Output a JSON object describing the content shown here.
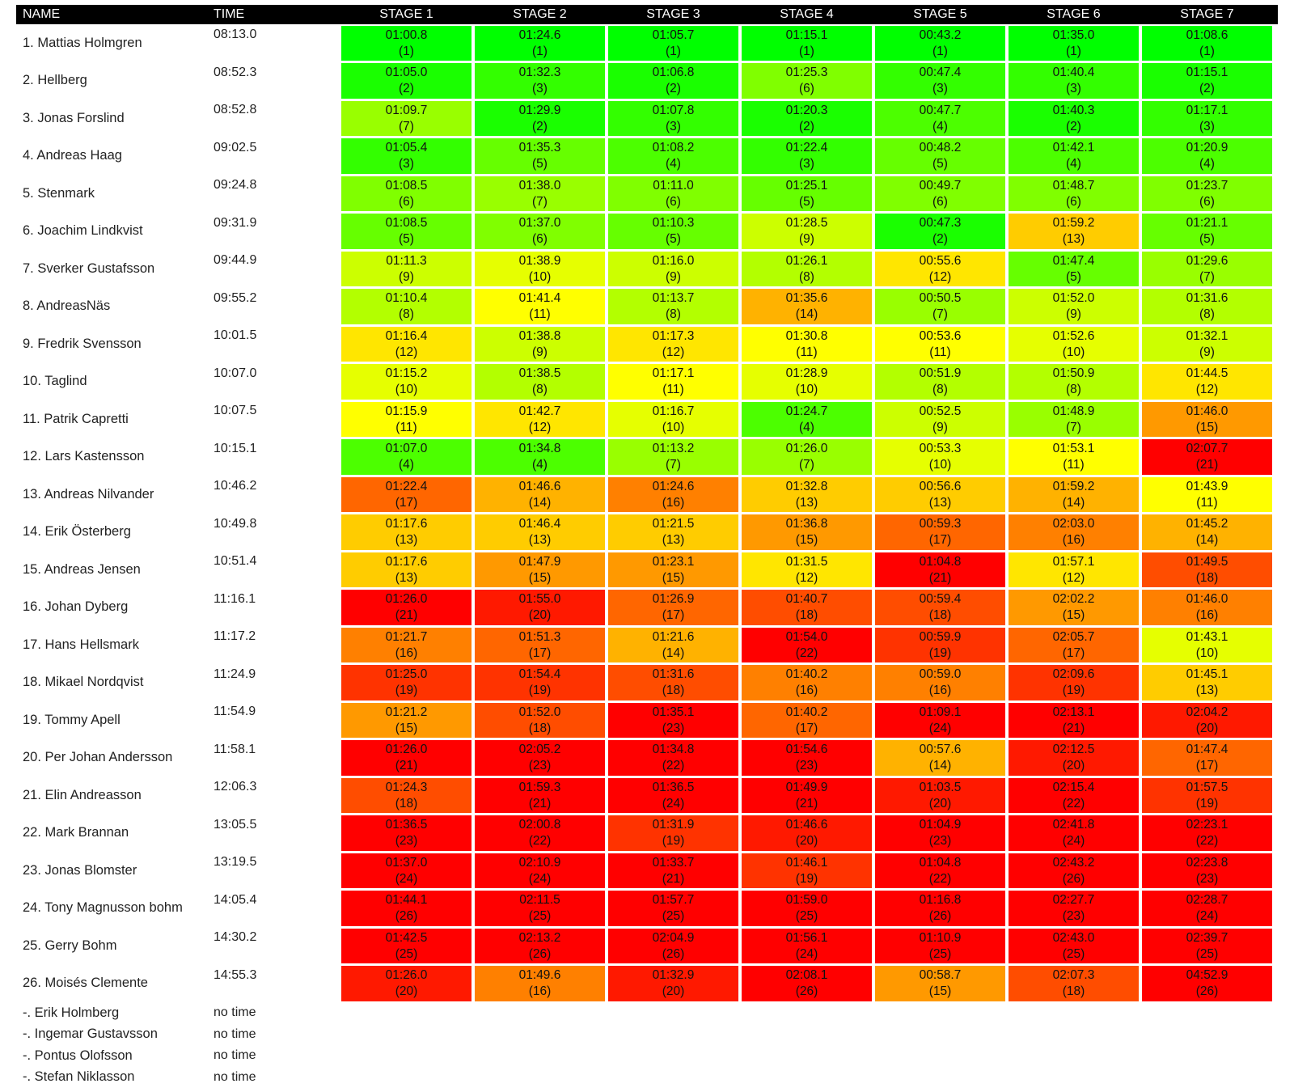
{
  "headers": {
    "name": "NAME",
    "time": "TIME",
    "stages": [
      "STAGE 1",
      "STAGE 2",
      "STAGE 3",
      "STAGE 4",
      "STAGE 5",
      "STAGE 6",
      "STAGE 7"
    ]
  },
  "rows": [
    {
      "name": "1. Mattias Holmgren",
      "time": "08:13.0",
      "stages": [
        {
          "t": "01:00.8",
          "r": 1
        },
        {
          "t": "01:24.6",
          "r": 1
        },
        {
          "t": "01:05.7",
          "r": 1
        },
        {
          "t": "01:15.1",
          "r": 1
        },
        {
          "t": "00:43.2",
          "r": 1
        },
        {
          "t": "01:35.0",
          "r": 1
        },
        {
          "t": "01:08.6",
          "r": 1
        }
      ]
    },
    {
      "name": "2. Hellberg",
      "time": "08:52.3",
      "stages": [
        {
          "t": "01:05.0",
          "r": 2
        },
        {
          "t": "01:32.3",
          "r": 3
        },
        {
          "t": "01:06.8",
          "r": 2
        },
        {
          "t": "01:25.3",
          "r": 6
        },
        {
          "t": "00:47.4",
          "r": 3
        },
        {
          "t": "01:40.4",
          "r": 3
        },
        {
          "t": "01:15.1",
          "r": 2
        }
      ]
    },
    {
      "name": "3. Jonas Forslind",
      "time": "08:52.8",
      "stages": [
        {
          "t": "01:09.7",
          "r": 7
        },
        {
          "t": "01:29.9",
          "r": 2
        },
        {
          "t": "01:07.8",
          "r": 3
        },
        {
          "t": "01:20.3",
          "r": 2
        },
        {
          "t": "00:47.7",
          "r": 4
        },
        {
          "t": "01:40.3",
          "r": 2
        },
        {
          "t": "01:17.1",
          "r": 3
        }
      ]
    },
    {
      "name": "4. Andreas Haag",
      "time": "09:02.5",
      "stages": [
        {
          "t": "01:05.4",
          "r": 3
        },
        {
          "t": "01:35.3",
          "r": 5
        },
        {
          "t": "01:08.2",
          "r": 4
        },
        {
          "t": "01:22.4",
          "r": 3
        },
        {
          "t": "00:48.2",
          "r": 5
        },
        {
          "t": "01:42.1",
          "r": 4
        },
        {
          "t": "01:20.9",
          "r": 4
        }
      ]
    },
    {
      "name": "5. Stenmark",
      "time": "09:24.8",
      "stages": [
        {
          "t": "01:08.5",
          "r": 6
        },
        {
          "t": "01:38.0",
          "r": 7
        },
        {
          "t": "01:11.0",
          "r": 6
        },
        {
          "t": "01:25.1",
          "r": 5
        },
        {
          "t": "00:49.7",
          "r": 6
        },
        {
          "t": "01:48.7",
          "r": 6
        },
        {
          "t": "01:23.7",
          "r": 6
        }
      ]
    },
    {
      "name": "6. Joachim Lindkvist",
      "time": "09:31.9",
      "stages": [
        {
          "t": "01:08.5",
          "r": 5
        },
        {
          "t": "01:37.0",
          "r": 6
        },
        {
          "t": "01:10.3",
          "r": 5
        },
        {
          "t": "01:28.5",
          "r": 9
        },
        {
          "t": "00:47.3",
          "r": 2
        },
        {
          "t": "01:59.2",
          "r": 13
        },
        {
          "t": "01:21.1",
          "r": 5
        }
      ]
    },
    {
      "name": "7. Sverker Gustafsson",
      "time": "09:44.9",
      "stages": [
        {
          "t": "01:11.3",
          "r": 9
        },
        {
          "t": "01:38.9",
          "r": 10
        },
        {
          "t": "01:16.0",
          "r": 9
        },
        {
          "t": "01:26.1",
          "r": 8
        },
        {
          "t": "00:55.6",
          "r": 12
        },
        {
          "t": "01:47.4",
          "r": 5
        },
        {
          "t": "01:29.6",
          "r": 7
        }
      ]
    },
    {
      "name": "8. AndreasNäs",
      "time": "09:55.2",
      "stages": [
        {
          "t": "01:10.4",
          "r": 8
        },
        {
          "t": "01:41.4",
          "r": 11
        },
        {
          "t": "01:13.7",
          "r": 8
        },
        {
          "t": "01:35.6",
          "r": 14
        },
        {
          "t": "00:50.5",
          "r": 7
        },
        {
          "t": "01:52.0",
          "r": 9
        },
        {
          "t": "01:31.6",
          "r": 8
        }
      ]
    },
    {
      "name": "9. Fredrik Svensson",
      "time": "10:01.5",
      "stages": [
        {
          "t": "01:16.4",
          "r": 12
        },
        {
          "t": "01:38.8",
          "r": 9
        },
        {
          "t": "01:17.3",
          "r": 12
        },
        {
          "t": "01:30.8",
          "r": 11
        },
        {
          "t": "00:53.6",
          "r": 11
        },
        {
          "t": "01:52.6",
          "r": 10
        },
        {
          "t": "01:32.1",
          "r": 9
        }
      ]
    },
    {
      "name": "10. Taglind",
      "time": "10:07.0",
      "stages": [
        {
          "t": "01:15.2",
          "r": 10
        },
        {
          "t": "01:38.5",
          "r": 8
        },
        {
          "t": "01:17.1",
          "r": 11
        },
        {
          "t": "01:28.9",
          "r": 10
        },
        {
          "t": "00:51.9",
          "r": 8
        },
        {
          "t": "01:50.9",
          "r": 8
        },
        {
          "t": "01:44.5",
          "r": 12
        }
      ]
    },
    {
      "name": "11. Patrik Capretti",
      "time": "10:07.5",
      "stages": [
        {
          "t": "01:15.9",
          "r": 11
        },
        {
          "t": "01:42.7",
          "r": 12
        },
        {
          "t": "01:16.7",
          "r": 10
        },
        {
          "t": "01:24.7",
          "r": 4
        },
        {
          "t": "00:52.5",
          "r": 9
        },
        {
          "t": "01:48.9",
          "r": 7
        },
        {
          "t": "01:46.0",
          "r": 15
        }
      ]
    },
    {
      "name": "12. Lars Kastensson",
      "time": "10:15.1",
      "stages": [
        {
          "t": "01:07.0",
          "r": 4
        },
        {
          "t": "01:34.8",
          "r": 4
        },
        {
          "t": "01:13.2",
          "r": 7
        },
        {
          "t": "01:26.0",
          "r": 7
        },
        {
          "t": "00:53.3",
          "r": 10
        },
        {
          "t": "01:53.1",
          "r": 11
        },
        {
          "t": "02:07.7",
          "r": 21
        }
      ]
    },
    {
      "name": "13. Andreas Nilvander",
      "time": "10:46.2",
      "stages": [
        {
          "t": "01:22.4",
          "r": 17
        },
        {
          "t": "01:46.6",
          "r": 14
        },
        {
          "t": "01:24.6",
          "r": 16
        },
        {
          "t": "01:32.8",
          "r": 13
        },
        {
          "t": "00:56.6",
          "r": 13
        },
        {
          "t": "01:59.2",
          "r": 14
        },
        {
          "t": "01:43.9",
          "r": 11
        }
      ]
    },
    {
      "name": "14. Erik Österberg",
      "time": "10:49.8",
      "stages": [
        {
          "t": "01:17.6",
          "r": 13
        },
        {
          "t": "01:46.4",
          "r": 13
        },
        {
          "t": "01:21.5",
          "r": 13
        },
        {
          "t": "01:36.8",
          "r": 15
        },
        {
          "t": "00:59.3",
          "r": 17
        },
        {
          "t": "02:03.0",
          "r": 16
        },
        {
          "t": "01:45.2",
          "r": 14
        }
      ]
    },
    {
      "name": "15. Andreas Jensen",
      "time": "10:51.4",
      "stages": [
        {
          "t": "01:17.6",
          "r": 13
        },
        {
          "t": "01:47.9",
          "r": 15
        },
        {
          "t": "01:23.1",
          "r": 15
        },
        {
          "t": "01:31.5",
          "r": 12
        },
        {
          "t": "01:04.8",
          "r": 21
        },
        {
          "t": "01:57.1",
          "r": 12
        },
        {
          "t": "01:49.5",
          "r": 18
        }
      ]
    },
    {
      "name": "16. Johan Dyberg",
      "time": "11:16.1",
      "stages": [
        {
          "t": "01:26.0",
          "r": 21
        },
        {
          "t": "01:55.0",
          "r": 20
        },
        {
          "t": "01:26.9",
          "r": 17
        },
        {
          "t": "01:40.7",
          "r": 18
        },
        {
          "t": "00:59.4",
          "r": 18
        },
        {
          "t": "02:02.2",
          "r": 15
        },
        {
          "t": "01:46.0",
          "r": 16
        }
      ]
    },
    {
      "name": "17. Hans Hellsmark",
      "time": "11:17.2",
      "stages": [
        {
          "t": "01:21.7",
          "r": 16
        },
        {
          "t": "01:51.3",
          "r": 17
        },
        {
          "t": "01:21.6",
          "r": 14
        },
        {
          "t": "01:54.0",
          "r": 22
        },
        {
          "t": "00:59.9",
          "r": 19
        },
        {
          "t": "02:05.7",
          "r": 17
        },
        {
          "t": "01:43.1",
          "r": 10
        }
      ]
    },
    {
      "name": "18. Mikael Nordqvist",
      "time": "11:24.9",
      "stages": [
        {
          "t": "01:25.0",
          "r": 19
        },
        {
          "t": "01:54.4",
          "r": 19
        },
        {
          "t": "01:31.6",
          "r": 18
        },
        {
          "t": "01:40.2",
          "r": 16
        },
        {
          "t": "00:59.0",
          "r": 16
        },
        {
          "t": "02:09.6",
          "r": 19
        },
        {
          "t": "01:45.1",
          "r": 13
        }
      ]
    },
    {
      "name": "19. Tommy Apell",
      "time": "11:54.9",
      "stages": [
        {
          "t": "01:21.2",
          "r": 15
        },
        {
          "t": "01:52.0",
          "r": 18
        },
        {
          "t": "01:35.1",
          "r": 23
        },
        {
          "t": "01:40.2",
          "r": 17
        },
        {
          "t": "01:09.1",
          "r": 24
        },
        {
          "t": "02:13.1",
          "r": 21
        },
        {
          "t": "02:04.2",
          "r": 20
        }
      ]
    },
    {
      "name": "20. Per Johan Andersson",
      "time": "11:58.1",
      "stages": [
        {
          "t": "01:26.0",
          "r": 21
        },
        {
          "t": "02:05.2",
          "r": 23
        },
        {
          "t": "01:34.8",
          "r": 22
        },
        {
          "t": "01:54.6",
          "r": 23
        },
        {
          "t": "00:57.6",
          "r": 14
        },
        {
          "t": "02:12.5",
          "r": 20
        },
        {
          "t": "01:47.4",
          "r": 17
        }
      ]
    },
    {
      "name": "21. Elin Andreasson",
      "time": "12:06.3",
      "stages": [
        {
          "t": "01:24.3",
          "r": 18
        },
        {
          "t": "01:59.3",
          "r": 21
        },
        {
          "t": "01:36.5",
          "r": 24
        },
        {
          "t": "01:49.9",
          "r": 21
        },
        {
          "t": "01:03.5",
          "r": 20
        },
        {
          "t": "02:15.4",
          "r": 22
        },
        {
          "t": "01:57.5",
          "r": 19
        }
      ]
    },
    {
      "name": "22. Mark Brannan",
      "time": "13:05.5",
      "stages": [
        {
          "t": "01:36.5",
          "r": 23
        },
        {
          "t": "02:00.8",
          "r": 22
        },
        {
          "t": "01:31.9",
          "r": 19
        },
        {
          "t": "01:46.6",
          "r": 20
        },
        {
          "t": "01:04.9",
          "r": 23
        },
        {
          "t": "02:41.8",
          "r": 24
        },
        {
          "t": "02:23.1",
          "r": 22
        }
      ]
    },
    {
      "name": "23. Jonas Blomster",
      "time": "13:19.5",
      "stages": [
        {
          "t": "01:37.0",
          "r": 24
        },
        {
          "t": "02:10.9",
          "r": 24
        },
        {
          "t": "01:33.7",
          "r": 21
        },
        {
          "t": "01:46.1",
          "r": 19
        },
        {
          "t": "01:04.8",
          "r": 22
        },
        {
          "t": "02:43.2",
          "r": 26
        },
        {
          "t": "02:23.8",
          "r": 23
        }
      ]
    },
    {
      "name": "24. Tony Magnusson bohm",
      "time": "14:05.4",
      "stages": [
        {
          "t": "01:44.1",
          "r": 26
        },
        {
          "t": "02:11.5",
          "r": 25
        },
        {
          "t": "01:57.7",
          "r": 25
        },
        {
          "t": "01:59.0",
          "r": 25
        },
        {
          "t": "01:16.8",
          "r": 26
        },
        {
          "t": "02:27.7",
          "r": 23
        },
        {
          "t": "02:28.7",
          "r": 24
        }
      ]
    },
    {
      "name": "25. Gerry Bohm",
      "time": "14:30.2",
      "stages": [
        {
          "t": "01:42.5",
          "r": 25
        },
        {
          "t": "02:13.2",
          "r": 26
        },
        {
          "t": "02:04.9",
          "r": 26
        },
        {
          "t": "01:56.1",
          "r": 24
        },
        {
          "t": "01:10.9",
          "r": 25
        },
        {
          "t": "02:43.0",
          "r": 25
        },
        {
          "t": "02:39.7",
          "r": 25
        }
      ]
    },
    {
      "name": "26. Moisés Clemente",
      "time": "14:55.3",
      "stages": [
        {
          "t": "01:26.0",
          "r": 20
        },
        {
          "t": "01:49.6",
          "r": 16
        },
        {
          "t": "01:32.9",
          "r": 20
        },
        {
          "t": "02:08.1",
          "r": 26
        },
        {
          "t": "00:58.7",
          "r": 15
        },
        {
          "t": "02:07.3",
          "r": 18
        },
        {
          "t": "04:52.9",
          "r": 26
        }
      ]
    }
  ],
  "dnf": [
    {
      "name": "-. Erik Holmberg",
      "time": "no time"
    },
    {
      "name": "-. Ingemar Gustavsson",
      "time": "no time"
    },
    {
      "name": "-. Pontus Olofsson",
      "time": "no time"
    },
    {
      "name": "-. Stefan Niklasson",
      "time": "no time"
    }
  ]
}
